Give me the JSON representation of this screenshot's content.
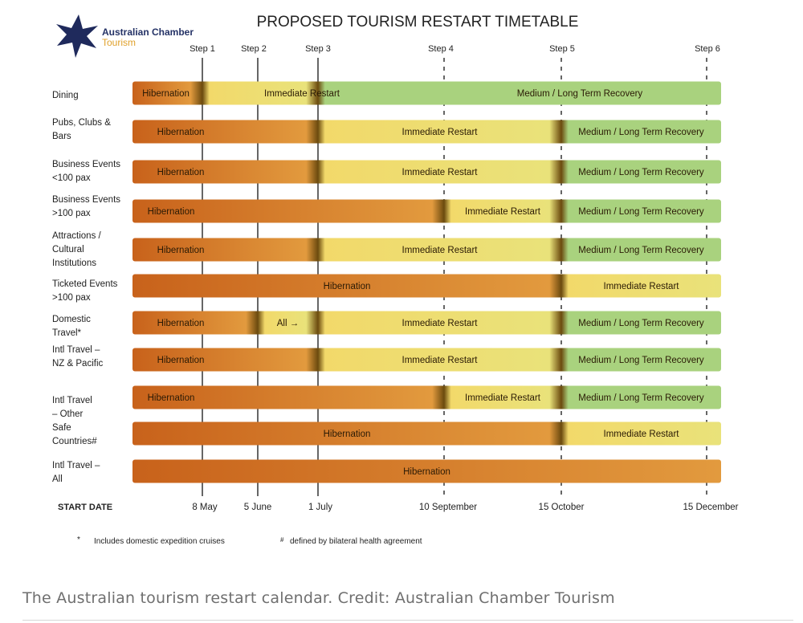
{
  "title": "PROPOSED TOURISM RESTART TIMETABLE",
  "logo": {
    "name": "Australian Chamber",
    "sub": "Tourism",
    "star_color": "#1f2a5c"
  },
  "steps": [
    "Step 1",
    "Step 2",
    "Step 3",
    "Step 4",
    "Step 5",
    "Step 6"
  ],
  "start_label": "START DATE",
  "dates": [
    "8 May",
    "5 June",
    "1 July",
    "10 September",
    "15 October",
    "15 December"
  ],
  "phases": {
    "hibernation": "Hibernation",
    "restart": "Immediate Restart",
    "recovery": "Medium / Long Term Recovery",
    "all": "All"
  },
  "colors": {
    "hibernation": "#c8621b",
    "hibernation_light": "#e29a3e",
    "restart": "#f2d96a",
    "restart_light": "#e9e27a",
    "recovery": "#a9d27e",
    "transition": "#6b4a0e"
  },
  "rows": [
    {
      "label": "Dining",
      "segments": [
        {
          "phase": "hibernation",
          "from": 0,
          "to": 1
        },
        {
          "phase": "restart",
          "from": 1,
          "to": 3
        },
        {
          "phase": "recovery",
          "from": 3,
          "to": 6
        }
      ]
    },
    {
      "label": "Pubs, Clubs & Bars",
      "segments": [
        {
          "phase": "hibernation",
          "from": 0,
          "to": 3
        },
        {
          "phase": "restart",
          "from": 3,
          "to": 5
        },
        {
          "phase": "recovery",
          "from": 5,
          "to": 6
        }
      ]
    },
    {
      "label": "Business Events <100 pax",
      "segments": [
        {
          "phase": "hibernation",
          "from": 0,
          "to": 3
        },
        {
          "phase": "restart",
          "from": 3,
          "to": 5
        },
        {
          "phase": "recovery",
          "from": 5,
          "to": 6
        }
      ]
    },
    {
      "label": "Business Events >100 pax",
      "segments": [
        {
          "phase": "hibernation",
          "from": 0,
          "to": 4
        },
        {
          "phase": "restart",
          "from": 4,
          "to": 5
        },
        {
          "phase": "recovery",
          "from": 5,
          "to": 6
        }
      ]
    },
    {
      "label": "Attractions / Cultural Institutions",
      "segments": [
        {
          "phase": "hibernation",
          "from": 0,
          "to": 3
        },
        {
          "phase": "restart",
          "from": 3,
          "to": 5
        },
        {
          "phase": "recovery",
          "from": 5,
          "to": 6
        }
      ]
    },
    {
      "label": "Ticketed Events >100 pax",
      "segments": [
        {
          "phase": "hibernation",
          "from": 0,
          "to": 5
        },
        {
          "phase": "restart",
          "from": 5,
          "to": 6
        }
      ]
    },
    {
      "label": "Domestic Travel*",
      "segments": [
        {
          "phase": "hibernation",
          "from": 0,
          "to": 2
        },
        {
          "phase": "all",
          "from": 2,
          "to": 3
        },
        {
          "phase": "restart",
          "from": 3,
          "to": 5
        },
        {
          "phase": "recovery",
          "from": 5,
          "to": 6
        }
      ]
    },
    {
      "label": "Intl Travel – NZ & Pacific",
      "segments": [
        {
          "phase": "hibernation",
          "from": 0,
          "to": 3
        },
        {
          "phase": "restart",
          "from": 3,
          "to": 5
        },
        {
          "phase": "recovery",
          "from": 5,
          "to": 6
        }
      ]
    },
    {
      "label": "Intl Travel – Other Safe Countries#",
      "segments": [
        {
          "phase": "hibernation",
          "from": 0,
          "to": 4
        },
        {
          "phase": "restart",
          "from": 4,
          "to": 5
        },
        {
          "phase": "recovery",
          "from": 5,
          "to": 6
        }
      ]
    },
    {
      "label": "",
      "segments": [
        {
          "phase": "hibernation",
          "from": 0,
          "to": 5
        },
        {
          "phase": "restart",
          "from": 5,
          "to": 6
        }
      ]
    },
    {
      "label": "Intl Travel – All",
      "segments": [
        {
          "phase": "hibernation",
          "from": 0,
          "to": 6
        }
      ]
    }
  ],
  "footnotes": [
    "Includes domestic expedition cruises",
    "defined by bilateral health agreement"
  ],
  "footnote_marks": [
    "*",
    "#"
  ],
  "caption": "The Australian tourism restart calendar. Credit: Australian Chamber Tourism"
}
